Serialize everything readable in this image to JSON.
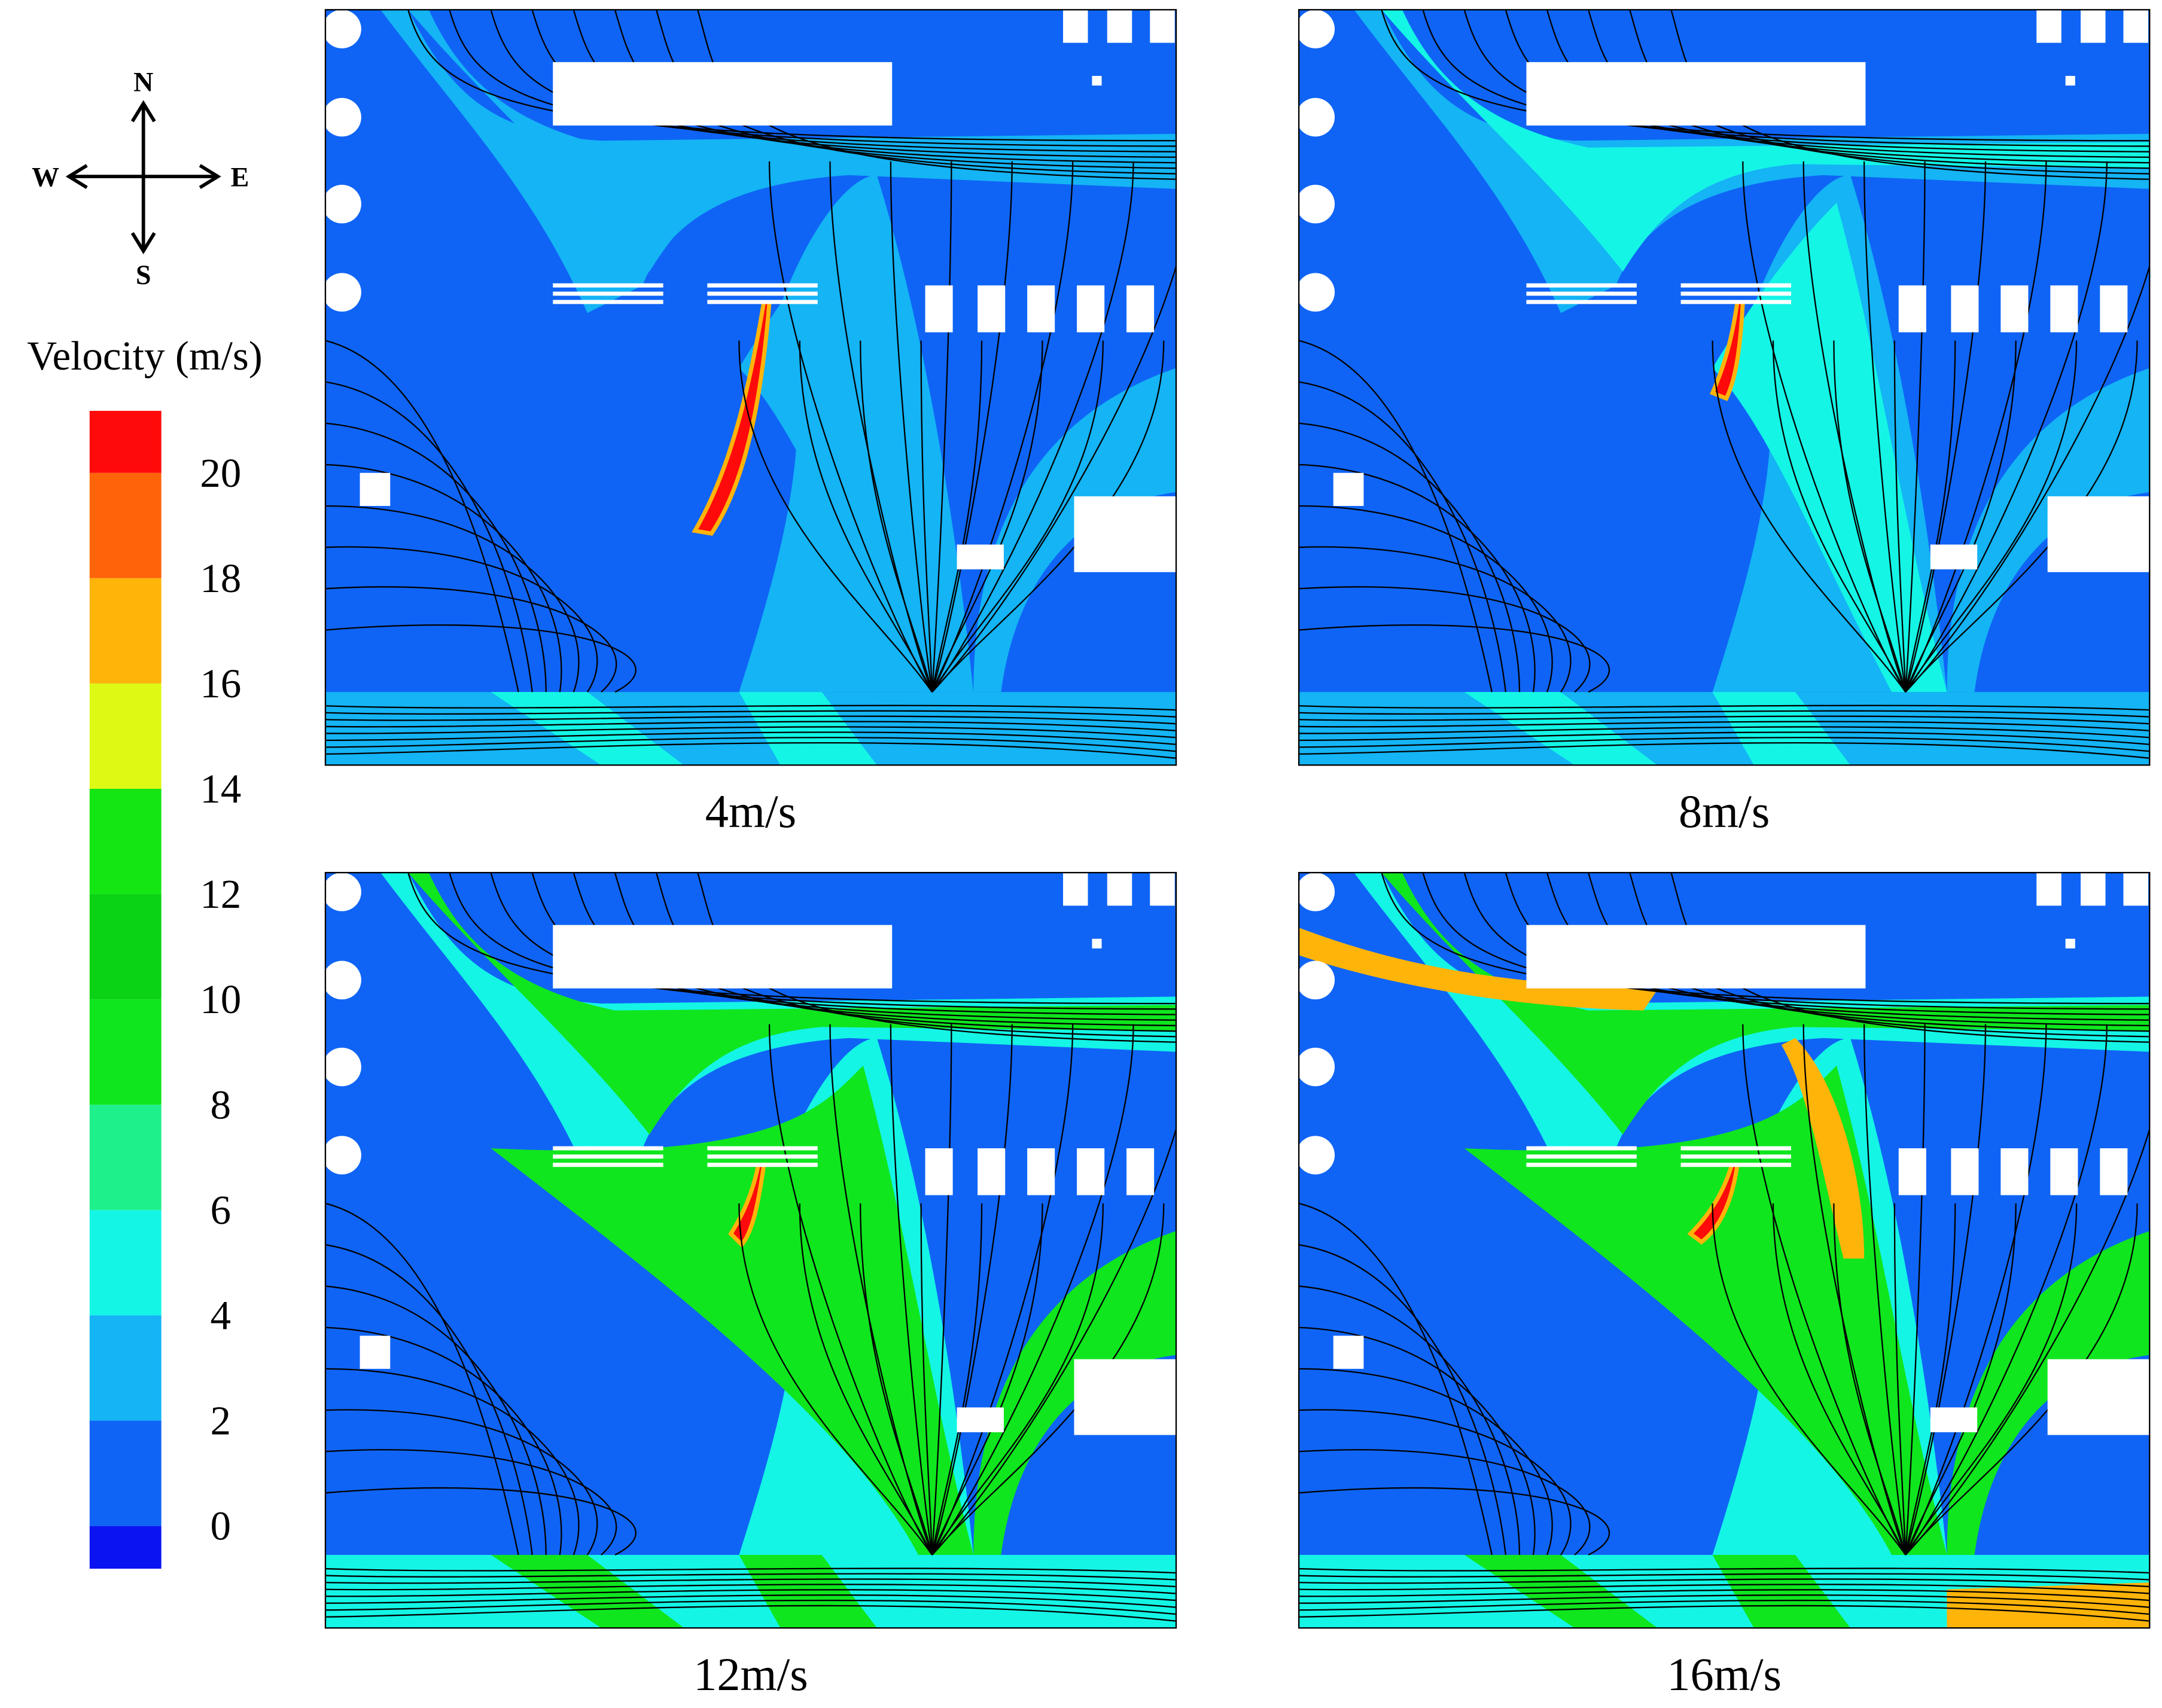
{
  "compass": {
    "north": "N",
    "south": "S",
    "west": "W",
    "east": "E"
  },
  "colorbar": {
    "title": "Velocity (m/s)",
    "ticks": [
      0,
      2,
      4,
      6,
      8,
      10,
      12,
      14,
      16,
      18,
      20
    ],
    "band_colors": [
      "#0a14f0",
      "#0f64f5",
      "#14b4f5",
      "#14f5e6",
      "#1ef08c",
      "#0fe61e",
      "#0ad214",
      "#14e614",
      "#dcfa14",
      "#ffb40a",
      "#ff640a",
      "#ff0a0a"
    ]
  },
  "panels": [
    {
      "caption": "4m/s"
    },
    {
      "caption": "8m/s"
    },
    {
      "caption": "12m/s"
    },
    {
      "caption": "16m/s"
    }
  ]
}
